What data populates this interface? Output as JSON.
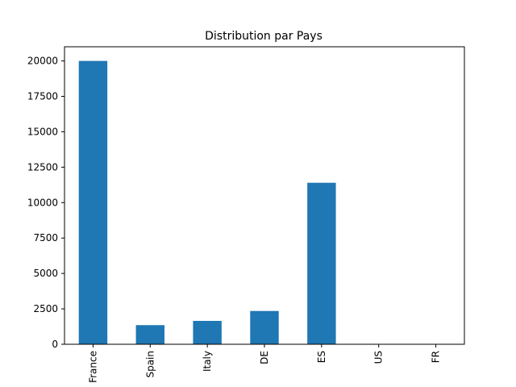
{
  "chart_data": {
    "type": "bar",
    "title": "Distribution par Pays",
    "xlabel": "",
    "ylabel": "",
    "categories": [
      "France",
      "Spain",
      "Italy",
      "DE",
      "ES",
      "US",
      "FR"
    ],
    "values": [
      20000,
      1350,
      1650,
      2350,
      11400,
      0,
      0
    ],
    "ylim": [
      0,
      21000
    ],
    "yticks": [
      0,
      2500,
      5000,
      7500,
      10000,
      12500,
      15000,
      17500,
      20000
    ],
    "ytick_labels": [
      "0",
      "2500",
      "5000",
      "7500",
      "10000",
      "12500",
      "15000",
      "17500",
      "20000"
    ],
    "grid": false,
    "legend": "none",
    "bar_color": "#1f77b4"
  }
}
